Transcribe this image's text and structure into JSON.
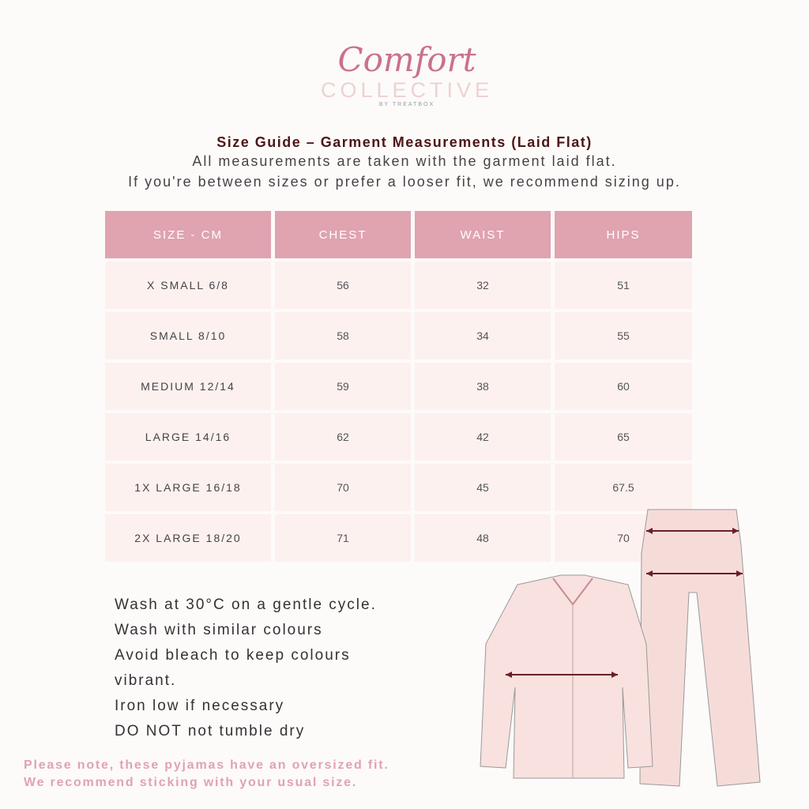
{
  "logo": {
    "script": "Comfort",
    "line2": "COLLECTIVE",
    "line3": "BY TREATBOX"
  },
  "title": "Size Guide – Garment Measurements (Laid Flat)",
  "subtitle_1": "All measurements are taken with the garment laid flat.",
  "subtitle_2": "If you're between sizes or prefer a looser fit, we recommend sizing up.",
  "table": {
    "headers": [
      "SIZE - CM",
      "CHEST",
      "WAIST",
      "HIPS"
    ],
    "rows": [
      [
        "X SMALL 6/8",
        "56",
        "32",
        "51"
      ],
      [
        "SMALL 8/10",
        "58",
        "34",
        "55"
      ],
      [
        "MEDIUM 12/14",
        "59",
        "38",
        "60"
      ],
      [
        "LARGE 14/16",
        "62",
        "42",
        "65"
      ],
      [
        "1X LARGE 16/18",
        "70",
        "45",
        "67.5"
      ],
      [
        "2X LARGE 18/20",
        "71",
        "48",
        "70"
      ]
    ]
  },
  "care": [
    "Wash at 30°C on a gentle cycle.",
    "Wash with similar colours",
    "Avoid bleach to keep colours vibrant.",
    "Iron low if necessary",
    "DO NOT not tumble dry"
  ],
  "note": [
    "Please note, these pyjamas have an oversized fit.",
    "We recommend sticking with your usual size."
  ],
  "colors": {
    "header": "#e0a3b0",
    "row": "#fcf1ef",
    "title": "#4e1616",
    "arrow": "#6b1f2a"
  }
}
